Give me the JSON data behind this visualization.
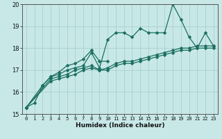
{
  "title": "",
  "xlabel": "Humidex (Indice chaleur)",
  "ylabel": "",
  "xlim": [
    -0.5,
    23.5
  ],
  "ylim": [
    15,
    20
  ],
  "yticks": [
    15,
    16,
    17,
    18,
    19,
    20
  ],
  "xticks": [
    0,
    1,
    2,
    3,
    4,
    5,
    6,
    7,
    8,
    9,
    10,
    11,
    12,
    13,
    14,
    15,
    16,
    17,
    18,
    19,
    20,
    21,
    22,
    23
  ],
  "bg_color": "#c8e8e8",
  "grid_color": "#aacece",
  "line_color": "#1a6e5e",
  "line_width": 0.9,
  "marker_size": 2.5,
  "lines": [
    [
      15.3,
      15.5,
      16.3,
      16.7,
      16.8,
      17.0,
      17.1,
      17.2,
      17.8,
      17.1,
      18.4,
      18.7,
      18.7,
      18.5,
      18.9,
      18.7,
      18.7,
      18.7,
      20.0,
      19.3,
      18.5,
      18.0,
      18.7,
      18.1
    ],
    [
      15.3,
      null,
      16.3,
      16.7,
      16.9,
      17.2,
      17.3,
      17.5,
      17.9,
      17.4,
      17.4,
      null,
      null,
      null,
      null,
      null,
      null,
      null,
      null,
      null,
      null,
      null,
      null,
      null
    ],
    [
      15.3,
      null,
      null,
      16.6,
      16.7,
      16.8,
      17.0,
      17.1,
      17.2,
      17.0,
      17.1,
      17.3,
      17.4,
      17.4,
      17.5,
      17.6,
      17.7,
      17.8,
      17.9,
      18.0,
      18.0,
      18.1,
      18.1,
      18.1
    ],
    [
      15.3,
      null,
      null,
      16.5,
      16.6,
      16.7,
      16.8,
      17.0,
      17.1,
      17.0,
      17.0,
      17.2,
      17.3,
      17.3,
      17.4,
      17.5,
      17.6,
      17.7,
      17.8,
      17.9,
      17.9,
      18.0,
      18.0,
      18.0
    ]
  ]
}
